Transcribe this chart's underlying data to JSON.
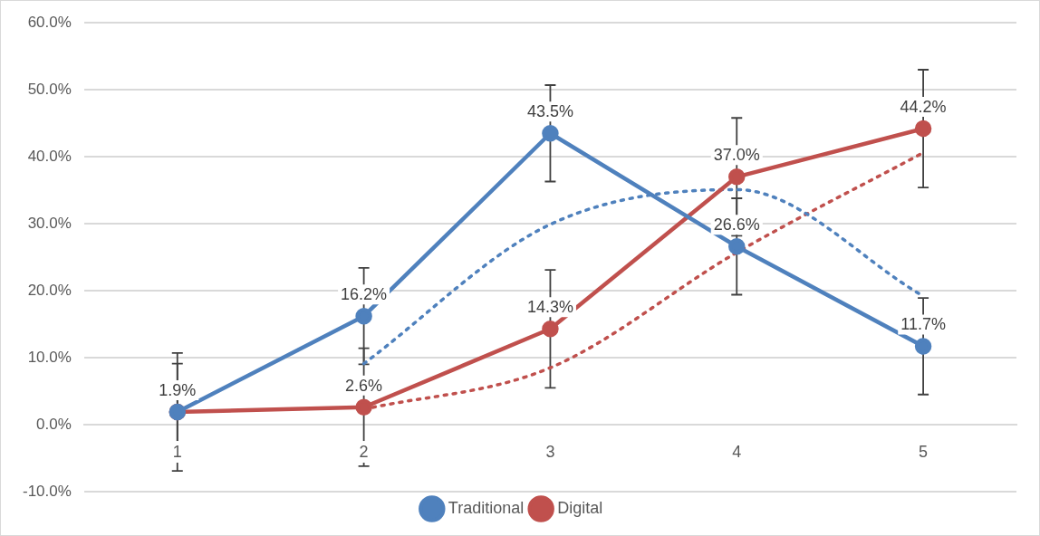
{
  "chart_data": {
    "type": "line",
    "categories": [
      "1",
      "2",
      "3",
      "4",
      "5"
    ],
    "ylim": [
      -10,
      60
    ],
    "yticks": [
      {
        "value": -10,
        "label": "-10.0%"
      },
      {
        "value": 0,
        "label": "0.0%"
      },
      {
        "value": 10,
        "label": "10.0%"
      },
      {
        "value": 20,
        "label": "20.0%"
      },
      {
        "value": 30,
        "label": "30.0%"
      },
      {
        "value": 40,
        "label": "40.0%"
      },
      {
        "value": 50,
        "label": "50.0%"
      },
      {
        "value": 60,
        "label": "60.0%"
      }
    ],
    "grid": "y",
    "legend": "bottom",
    "marker": "circle",
    "series": [
      {
        "name": "Traditional",
        "color": "#4f81bd",
        "values": [
          1.9,
          16.2,
          43.5,
          26.6,
          11.7
        ],
        "errors": [
          7.2,
          7.2,
          7.2,
          7.2,
          7.2
        ],
        "value_labels": [
          "1.9%",
          "16.2%",
          "43.5%",
          "26.6%",
          "11.7%"
        ]
      },
      {
        "name": "Digital",
        "color": "#c0504d",
        "values": [
          1.9,
          2.6,
          14.3,
          37.0,
          44.2
        ],
        "errors": [
          8.8,
          8.8,
          8.8,
          8.8,
          8.8
        ],
        "value_labels": [
          null,
          "2.6%",
          "14.3%",
          "37.0%",
          "44.2%"
        ]
      },
      {
        "type": "line",
        "color": "#4f81bd",
        "line_style": "dotted",
        "marker": "none",
        "values": [
          null,
          9.1,
          29.9,
          35.1,
          19.2
        ]
      },
      {
        "type": "line",
        "color": "#c0504d",
        "line_style": "dotted",
        "marker": "none",
        "values": [
          null,
          2.3,
          8.5,
          25.7,
          40.6
        ]
      }
    ]
  }
}
